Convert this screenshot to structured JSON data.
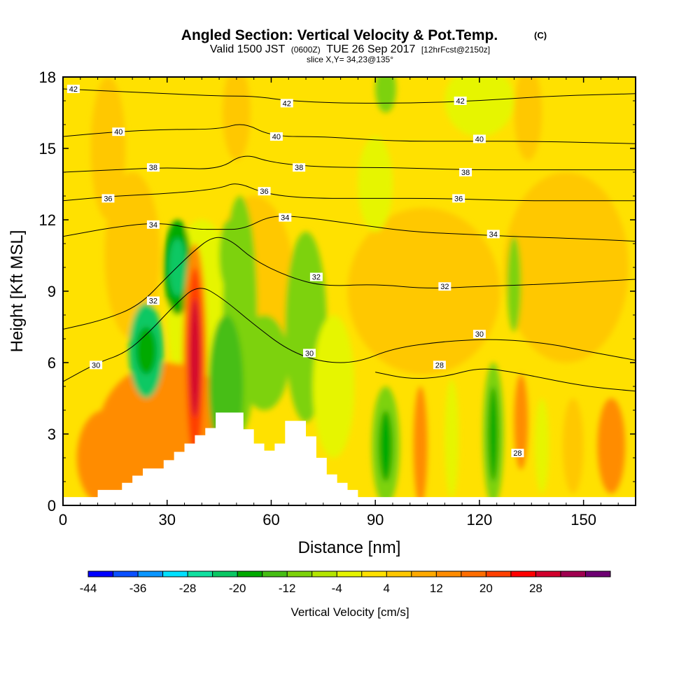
{
  "chart_data": {
    "type": "heatmap",
    "title": "Angled Section: Vertical Velocity & Pot.Temp.",
    "title_suffix": "(C)",
    "subtitle_main": "Valid 1500 JST",
    "subtitle_utc": "(0600Z)",
    "subtitle_date": "TUE 26 Sep 2017",
    "subtitle_fcst": "[12hrFcst@2150z]",
    "slice_text": "slice X,Y= 34,23@135°",
    "xlabel": "Distance [nm]",
    "ylabel": "Height [Kft MSL]",
    "xlim": [
      0,
      165
    ],
    "ylim": [
      0,
      18
    ],
    "xticks": [
      "0",
      "30",
      "60",
      "90",
      "120",
      "150"
    ],
    "yticks": [
      "0",
      "3",
      "6",
      "9",
      "12",
      "15",
      "18"
    ],
    "colorbar": {
      "label": "Vertical Velocity [cm/s]",
      "tick_labels": [
        "-44",
        "-36",
        "-28",
        "-20",
        "-12",
        "-4",
        "4",
        "12",
        "20",
        "28"
      ],
      "colors": [
        "#0000ff",
        "#0a50ff",
        "#0a96ff",
        "#00e1ff",
        "#10e0a0",
        "#0ac864",
        "#00aa00",
        "#46be14",
        "#7dd20a",
        "#b4e600",
        "#e6f500",
        "#ffe100",
        "#ffc800",
        "#ffaa00",
        "#ff8c00",
        "#ff6e00",
        "#ff4000",
        "#ff0000",
        "#d2002d",
        "#a00050",
        "#6e0073"
      ]
    },
    "terrain_profile": [
      [
        0,
        0.35
      ],
      [
        10,
        0.35
      ],
      [
        10,
        0.65
      ],
      [
        17,
        0.65
      ],
      [
        17,
        0.95
      ],
      [
        20,
        0.95
      ],
      [
        20,
        1.25
      ],
      [
        23,
        1.25
      ],
      [
        23,
        1.55
      ],
      [
        29,
        1.55
      ],
      [
        29,
        1.9
      ],
      [
        32,
        1.9
      ],
      [
        32,
        2.25
      ],
      [
        35,
        2.25
      ],
      [
        35,
        2.6
      ],
      [
        38,
        2.6
      ],
      [
        38,
        2.95
      ],
      [
        41,
        2.95
      ],
      [
        41,
        3.25
      ],
      [
        44,
        3.25
      ],
      [
        44,
        3.9
      ],
      [
        52,
        3.9
      ],
      [
        52,
        3.2
      ],
      [
        55,
        3.2
      ],
      [
        55,
        2.6
      ],
      [
        58,
        2.6
      ],
      [
        58,
        2.3
      ],
      [
        61,
        2.3
      ],
      [
        61,
        2.6
      ],
      [
        64,
        2.6
      ],
      [
        64,
        3.55
      ],
      [
        70,
        3.55
      ],
      [
        70,
        2.9
      ],
      [
        73,
        2.9
      ],
      [
        73,
        2.0
      ],
      [
        76,
        2.0
      ],
      [
        76,
        1.3
      ],
      [
        79,
        1.3
      ],
      [
        79,
        0.95
      ],
      [
        82,
        0.95
      ],
      [
        82,
        0.65
      ],
      [
        85,
        0.65
      ],
      [
        85,
        0.35
      ],
      [
        165,
        0.35
      ]
    ],
    "theta_contours": [
      {
        "label": "28",
        "points": [
          [
            90,
            5.6
          ],
          [
            100,
            5.3
          ],
          [
            110,
            5.4
          ],
          [
            120,
            5.8
          ],
          [
            130,
            5.6
          ],
          [
            150,
            5.0
          ],
          [
            165,
            4.8
          ]
        ]
      },
      {
        "label": "30",
        "points": [
          [
            0,
            5.2
          ],
          [
            10,
            6.0
          ],
          [
            18,
            6.4
          ],
          [
            25,
            7.3
          ],
          [
            32,
            8.4
          ],
          [
            39,
            9.3
          ],
          [
            46,
            8.7
          ],
          [
            55,
            7.6
          ],
          [
            65,
            6.5
          ],
          [
            75,
            6.0
          ],
          [
            85,
            6.0
          ],
          [
            95,
            6.6
          ],
          [
            110,
            6.9
          ],
          [
            125,
            7.0
          ],
          [
            140,
            6.8
          ],
          [
            150,
            6.5
          ],
          [
            165,
            6.1
          ]
        ]
      },
      {
        "label": "32",
        "points": [
          [
            0,
            7.4
          ],
          [
            12,
            7.8
          ],
          [
            22,
            8.4
          ],
          [
            30,
            9.6
          ],
          [
            37,
            10.6
          ],
          [
            43,
            11.3
          ],
          [
            48,
            11.2
          ],
          [
            55,
            10.3
          ],
          [
            65,
            9.6
          ],
          [
            75,
            9.2
          ],
          [
            90,
            9.3
          ],
          [
            105,
            9.1
          ],
          [
            120,
            9.2
          ],
          [
            140,
            9.3
          ],
          [
            165,
            9.5
          ]
        ]
      },
      {
        "label": "34",
        "points": [
          [
            0,
            11.3
          ],
          [
            15,
            11.7
          ],
          [
            28,
            11.9
          ],
          [
            38,
            11.6
          ],
          [
            45,
            11.6
          ],
          [
            52,
            11.6
          ],
          [
            60,
            12.2
          ],
          [
            70,
            12.1
          ],
          [
            85,
            11.8
          ],
          [
            100,
            11.5
          ],
          [
            115,
            11.4
          ],
          [
            130,
            11.3
          ],
          [
            150,
            11.2
          ],
          [
            165,
            11.1
          ]
        ]
      },
      {
        "label": "36",
        "points": [
          [
            0,
            12.8
          ],
          [
            15,
            13.0
          ],
          [
            30,
            13.1
          ],
          [
            45,
            13.3
          ],
          [
            50,
            13.6
          ],
          [
            58,
            13.1
          ],
          [
            70,
            12.9
          ],
          [
            90,
            12.9
          ],
          [
            110,
            12.9
          ],
          [
            130,
            12.8
          ],
          [
            150,
            12.8
          ],
          [
            165,
            12.8
          ]
        ]
      },
      {
        "label": "38",
        "points": [
          [
            0,
            14.0
          ],
          [
            15,
            14.1
          ],
          [
            30,
            14.2
          ],
          [
            45,
            14.1
          ],
          [
            52,
            14.8
          ],
          [
            60,
            14.4
          ],
          [
            75,
            14.2
          ],
          [
            95,
            14.2
          ],
          [
            115,
            14.1
          ],
          [
            135,
            14.1
          ],
          [
            165,
            14.1
          ]
        ]
      },
      {
        "label": "40",
        "points": [
          [
            0,
            15.5
          ],
          [
            15,
            15.7
          ],
          [
            30,
            15.8
          ],
          [
            45,
            15.8
          ],
          [
            52,
            16.1
          ],
          [
            60,
            15.5
          ],
          [
            75,
            15.5
          ],
          [
            95,
            15.3
          ],
          [
            115,
            15.3
          ],
          [
            135,
            15.3
          ],
          [
            165,
            15.2
          ]
        ]
      },
      {
        "label": "42",
        "points": [
          [
            0,
            17.5
          ],
          [
            15,
            17.4
          ],
          [
            30,
            17.3
          ],
          [
            45,
            17.2
          ],
          [
            55,
            17.2
          ],
          [
            65,
            17.0
          ],
          [
            80,
            16.9
          ],
          [
            100,
            16.9
          ],
          [
            120,
            17.0
          ],
          [
            140,
            17.2
          ],
          [
            165,
            17.3
          ]
        ]
      }
    ],
    "theta_contour_labels": [
      {
        "text": "42",
        "x": 3,
        "y": 17.5
      },
      {
        "text": "42",
        "x": 64.5,
        "y": 16.9
      },
      {
        "text": "42",
        "x": 114.5,
        "y": 17.0
      },
      {
        "text": "40",
        "x": 16,
        "y": 15.7
      },
      {
        "text": "40",
        "x": 61.5,
        "y": 15.5
      },
      {
        "text": "40",
        "x": 120,
        "y": 15.4
      },
      {
        "text": "38",
        "x": 26,
        "y": 14.2
      },
      {
        "text": "38",
        "x": 68,
        "y": 14.2
      },
      {
        "text": "38",
        "x": 116,
        "y": 14.0
      },
      {
        "text": "36",
        "x": 13,
        "y": 12.9
      },
      {
        "text": "36",
        "x": 58,
        "y": 13.2
      },
      {
        "text": "36",
        "x": 114,
        "y": 12.9
      },
      {
        "text": "34",
        "x": 26,
        "y": 11.8
      },
      {
        "text": "34",
        "x": 64,
        "y": 12.1
      },
      {
        "text": "34",
        "x": 124,
        "y": 11.4
      },
      {
        "text": "32",
        "x": 26,
        "y": 8.6
      },
      {
        "text": "32",
        "x": 73,
        "y": 9.6
      },
      {
        "text": "32",
        "x": 110,
        "y": 9.2
      },
      {
        "text": "30",
        "x": 9.5,
        "y": 5.9
      },
      {
        "text": "30",
        "x": 71,
        "y": 6.4
      },
      {
        "text": "30",
        "x": 120,
        "y": 7.2
      },
      {
        "text": "28",
        "x": 108.5,
        "y": 5.9
      },
      {
        "text": "28",
        "x": 131,
        "y": 2.2
      }
    ],
    "velocity_regions": [
      {
        "x": 20,
        "y": 10.5,
        "rx": 8,
        "ry": 3.5,
        "value": 4
      },
      {
        "x": 55,
        "y": 9,
        "rx": 12,
        "ry": 4,
        "value": 4
      },
      {
        "x": 104,
        "y": 9,
        "rx": 22,
        "ry": 3.5,
        "value": 4
      },
      {
        "x": 145,
        "y": 10,
        "rx": 18,
        "ry": 4,
        "value": 4
      },
      {
        "x": 13,
        "y": 15,
        "rx": 5,
        "ry": 3,
        "value": 4
      },
      {
        "x": 134,
        "y": 16.5,
        "rx": 4,
        "ry": 2,
        "value": 4
      },
      {
        "x": 50,
        "y": 16.5,
        "rx": 4,
        "ry": 2,
        "value": 4
      },
      {
        "x": 120,
        "y": 17,
        "rx": 10,
        "ry": 1.5,
        "value": -4
      },
      {
        "x": 90,
        "y": 13.5,
        "rx": 5,
        "ry": 2,
        "value": -4
      },
      {
        "x": 40,
        "y": 8,
        "rx": 10,
        "ry": 4,
        "value": -4
      },
      {
        "x": 30,
        "y": 3,
        "rx": 20,
        "ry": 3,
        "value": 12
      },
      {
        "x": 12,
        "y": 2,
        "rx": 8,
        "ry": 2,
        "value": 12
      },
      {
        "x": 70,
        "y": 7.5,
        "rx": 6,
        "ry": 4,
        "value": -12
      },
      {
        "x": 78,
        "y": 5,
        "rx": 6,
        "ry": 3,
        "value": -4
      },
      {
        "x": 51,
        "y": 8,
        "rx": 5,
        "ry": 5,
        "value": -12
      },
      {
        "x": 48,
        "y": 10.5,
        "rx": 3,
        "ry": 1.5,
        "value": -12
      },
      {
        "x": 58,
        "y": 6,
        "rx": 7,
        "ry": 2,
        "value": -12
      },
      {
        "x": 47,
        "y": 5,
        "rx": 5,
        "ry": 3,
        "value": -16
      },
      {
        "x": 93,
        "y": 2.5,
        "rx": 4,
        "ry": 2.5,
        "value": -12
      },
      {
        "x": 103,
        "y": 2.5,
        "rx": 2,
        "ry": 2.5,
        "value": 12
      },
      {
        "x": 112,
        "y": 2.8,
        "rx": 2,
        "ry": 2.5,
        "value": -4
      },
      {
        "x": 124,
        "y": 3,
        "rx": 3,
        "ry": 3,
        "value": -12
      },
      {
        "x": 132,
        "y": 3.5,
        "rx": 2,
        "ry": 2,
        "value": 12
      },
      {
        "x": 138,
        "y": 2.5,
        "rx": 2,
        "ry": 2,
        "value": -4
      },
      {
        "x": 147,
        "y": 2.5,
        "rx": 3,
        "ry": 2,
        "value": 4
      },
      {
        "x": 158,
        "y": 2.5,
        "rx": 4,
        "ry": 2,
        "value": 12
      },
      {
        "x": 130,
        "y": 9.3,
        "rx": 2,
        "ry": 2,
        "value": -12
      },
      {
        "x": 93,
        "y": 17.5,
        "rx": 3,
        "ry": 1,
        "value": -12
      },
      {
        "x": 24,
        "y": 6.5,
        "rx": 5,
        "ry": 2,
        "value": -24
      },
      {
        "x": 24,
        "y": 6.5,
        "rx": 3,
        "ry": 1,
        "value": -20
      },
      {
        "x": 33,
        "y": 10,
        "rx": 4,
        "ry": 2,
        "value": -20
      },
      {
        "x": 33,
        "y": 10,
        "rx": 2.5,
        "ry": 1.2,
        "value": -24
      },
      {
        "x": 93,
        "y": 2.5,
        "rx": 2,
        "ry": 1.5,
        "value": -20
      },
      {
        "x": 124,
        "y": 3,
        "rx": 1.5,
        "ry": 2,
        "value": -20
      },
      {
        "x": 38,
        "y": 6,
        "rx": 3.5,
        "ry": 5,
        "value": 12
      },
      {
        "x": 38,
        "y": 6,
        "rx": 2.5,
        "ry": 4,
        "value": 20
      },
      {
        "x": 38,
        "y": 6.2,
        "rx": 1.5,
        "ry": 2.5,
        "value": 28
      }
    ]
  }
}
